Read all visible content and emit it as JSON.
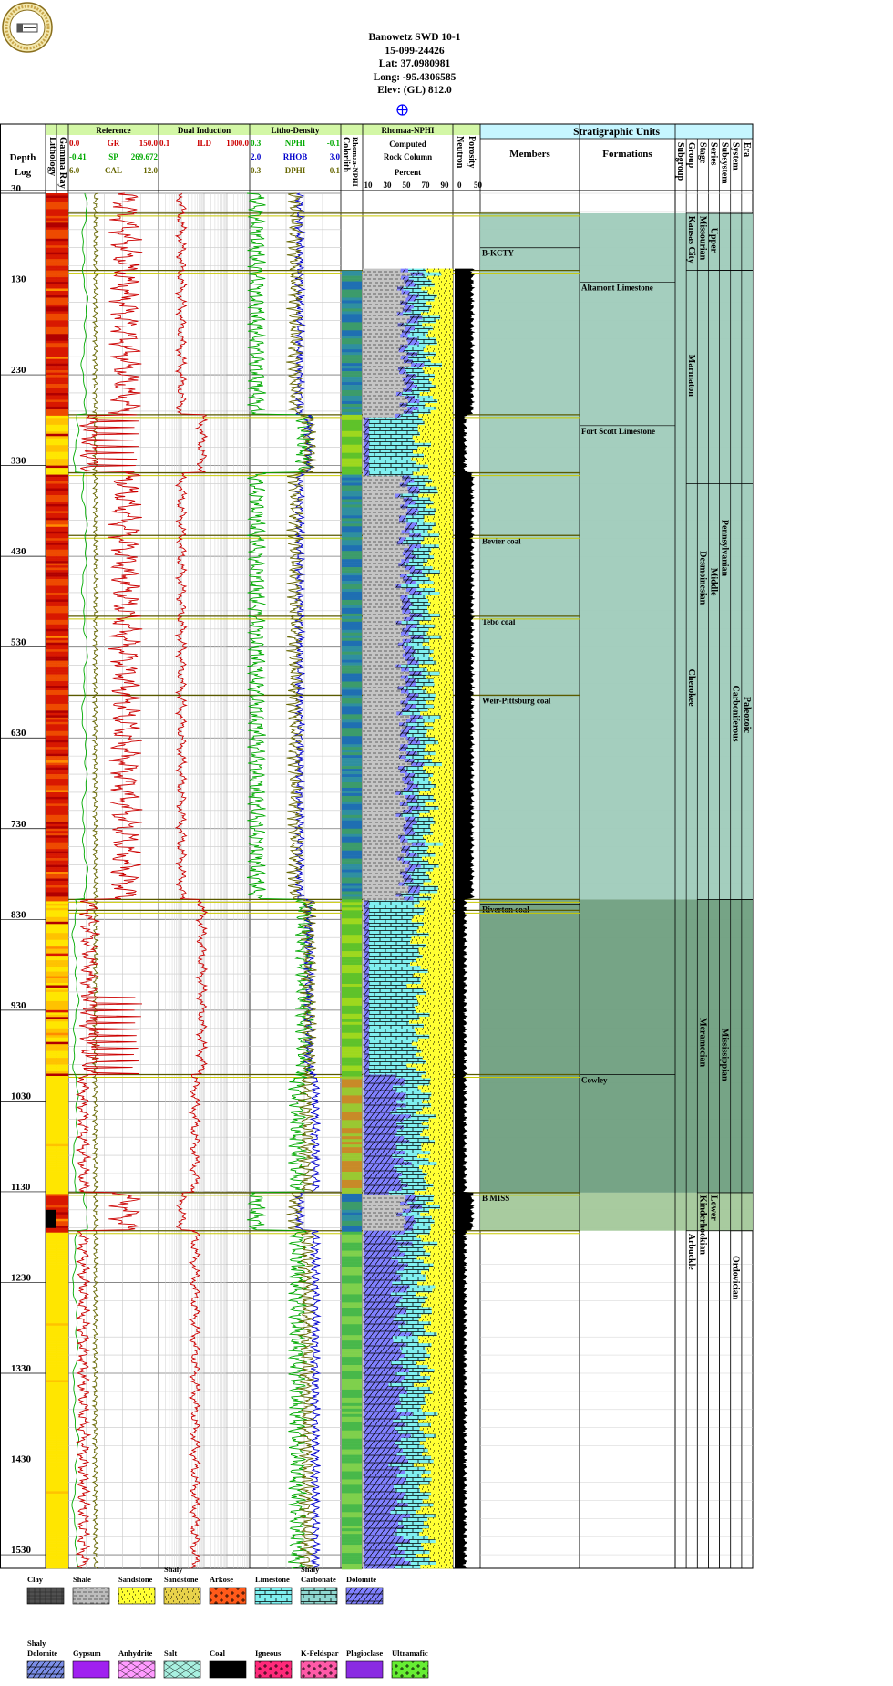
{
  "header": {
    "well_name": "Banowetz SWD 10-1",
    "api": "15-099-24426",
    "lat": "Lat: 37.0980981",
    "long": "Long: -95.4306585",
    "elev": "Elev: (GL) 812.0"
  },
  "chart_data": {
    "type": "well log",
    "depth_axis": {
      "title_top": "Depth",
      "title_bottom": "Log",
      "range": [
        30,
        1545
      ],
      "tick_labels": [
        "30",
        "130",
        "230",
        "330",
        "430",
        "530",
        "630",
        "730",
        "830",
        "930",
        "1030",
        "1130",
        "1230",
        "1330",
        "1430",
        "1530"
      ]
    },
    "tracks": {
      "lithology": "Lithology",
      "gamma_ray": "Gamma Ray",
      "reference": {
        "title": "Reference",
        "curves": [
          {
            "left": "0.0",
            "name": "GR",
            "right": "150.0",
            "color": "#cc0000"
          },
          {
            "left": "-0.41",
            "name": "SP",
            "right": "269.672",
            "color": "#00aa00"
          },
          {
            "left": "6.0",
            "name": "CAL",
            "right": "12.0",
            "color": "#666600"
          }
        ]
      },
      "dual_induction": {
        "title": "Dual Induction",
        "curves": [
          {
            "left": "0.1",
            "name": "ILD",
            "right": "1000.0",
            "color": "#cc0000"
          }
        ]
      },
      "litho_density": {
        "title": "Litho-Density",
        "curves": [
          {
            "left": "0.3",
            "name": "NPHI",
            "right": "-0.1",
            "color": "#00aa00"
          },
          {
            "left": "2.0",
            "name": "RHOB",
            "right": "3.0",
            "color": "#0000cc"
          },
          {
            "left": "0.3",
            "name": "DPHI",
            "right": "-0.1",
            "color": "#666600"
          }
        ]
      },
      "colorlith": "Colorlith",
      "rhomaa_nphi_label": "Rhomaa-NPHI",
      "rock_column": {
        "title": "Rhomaa-NPHI",
        "line2": "Computed",
        "line3": "Rock Column",
        "line4": "Percent",
        "scale": [
          "10",
          "30",
          "50",
          "70",
          "90"
        ]
      },
      "porosity": {
        "title": "Porosity",
        "sub": "Neutron",
        "scale": [
          "0",
          "50"
        ]
      }
    },
    "strat": {
      "title": "Stratigraphic Units",
      "members_header": "Members",
      "formations_header": "Formations",
      "rank_headers": [
        "Subgroup",
        "Group",
        "Stage",
        "Series",
        "Subsystem",
        "System",
        "Era"
      ],
      "members": [
        {
          "label": "B-KCTY",
          "depth": 90
        },
        {
          "label": "Bevier coal",
          "depth": 407
        },
        {
          "label": "Tebo coal",
          "depth": 496
        },
        {
          "label": "Weir-Pittsburg coal",
          "depth": 583
        },
        {
          "label": "Riverton coal",
          "depth": 813
        },
        {
          "label": "B MISS",
          "depth": 1131
        }
      ],
      "formations": [
        {
          "label": "Altamont Limestone",
          "depth": 128
        },
        {
          "label": "Fort Scott Limestone",
          "depth": 286
        },
        {
          "label": "Cowley",
          "depth": 1001
        }
      ],
      "ranks": [
        {
          "col": "Group",
          "label": "Kansas City",
          "top": 52,
          "bottom": 115
        },
        {
          "col": "Group",
          "label": "Marmaton",
          "top": 115,
          "bottom": 350
        },
        {
          "col": "Group",
          "label": "Cherokee",
          "top": 350,
          "bottom": 808
        },
        {
          "col": "Group",
          "label": "Arbuckle",
          "top": 1173,
          "bottom": 1230
        },
        {
          "col": "Stage",
          "label": "Missourian",
          "top": 52,
          "bottom": 115
        },
        {
          "col": "Stage",
          "label": "Desmoinesian",
          "top": 115,
          "bottom": 808
        },
        {
          "col": "Stage",
          "label": "Meramecian",
          "top": 808,
          "bottom": 1131
        },
        {
          "col": "Stage",
          "label": "Kinderhookian",
          "top": 1131,
          "bottom": 1173
        },
        {
          "col": "Series",
          "label": "Upper",
          "top": 52,
          "bottom": 115
        },
        {
          "col": "Series",
          "label": "Middle",
          "top": 115,
          "bottom": 808
        },
        {
          "col": "Series",
          "label": "Lower",
          "top": 1131,
          "bottom": 1173
        },
        {
          "col": "Subsystem",
          "label": "Pennsylvanian",
          "top": 52,
          "bottom": 808
        },
        {
          "col": "Subsystem",
          "label": "Mississippian",
          "top": 808,
          "bottom": 1173
        },
        {
          "col": "System",
          "label": "Carboniferous",
          "top": 52,
          "bottom": 1173
        },
        {
          "col": "System",
          "label": "Ordovician",
          "top": 1173,
          "bottom": 1290
        },
        {
          "col": "Era",
          "label": "Paleozoic",
          "top": 52,
          "bottom": 1173
        }
      ],
      "bands": [
        {
          "top": 52,
          "bottom": 808,
          "color": "#9fcbbb"
        },
        {
          "top": 808,
          "bottom": 1131,
          "color": "#6f9f80"
        },
        {
          "top": 1131,
          "bottom": 1173,
          "color": "#a3c89a"
        }
      ],
      "zone_boundaries": [
        52,
        115,
        274,
        338,
        407,
        496,
        583,
        808,
        820,
        1001,
        1131,
        1173
      ]
    },
    "legend": [
      {
        "name": "Clay",
        "color": "#505050",
        "pattern": "clay"
      },
      {
        "name": "Shale",
        "color": "#bdbdbd",
        "pattern": "shale"
      },
      {
        "name": "Sandstone",
        "color": "#ffff33",
        "pattern": "sand"
      },
      {
        "name": "Shaly\nSandstone",
        "color": "#e8d24a",
        "pattern": "sand"
      },
      {
        "name": "Arkose",
        "color": "#ff5a1a",
        "pattern": "plus"
      },
      {
        "name": "Limestone",
        "color": "#7ff0f0",
        "pattern": "brick"
      },
      {
        "name": "Shaly\nCarbonate",
        "color": "#8fd6cf",
        "pattern": "brick"
      },
      {
        "name": "Dolomite",
        "color": "#8080ff",
        "pattern": "diag"
      },
      {
        "name": "Shaly\nDolomite",
        "color": "#7b8ee8",
        "pattern": "diag"
      },
      {
        "name": "Gypsum",
        "color": "#a020f0",
        "pattern": "solid"
      },
      {
        "name": "Anhydrite",
        "color": "#ff9bff",
        "pattern": "hatch"
      },
      {
        "name": "Salt",
        "color": "#a8f0e0",
        "pattern": "hatch"
      },
      {
        "name": "Coal",
        "color": "#000000",
        "pattern": "solid"
      },
      {
        "name": "Igneous",
        "color": "#ff2a7a",
        "pattern": "plus"
      },
      {
        "name": "K-Feldspar",
        "color": "#ff5aa8",
        "pattern": "plus"
      },
      {
        "name": "Plagioclase",
        "color": "#8a2be2",
        "pattern": "solid"
      },
      {
        "name": "Ultramafic",
        "color": "#66ee33",
        "pattern": "plus"
      }
    ]
  }
}
